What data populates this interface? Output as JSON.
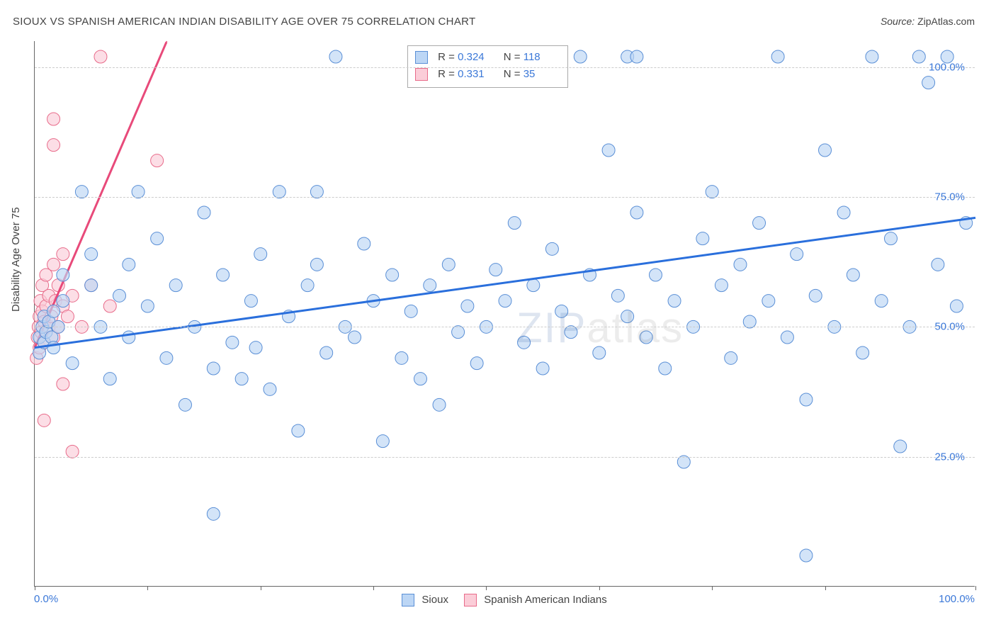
{
  "title": "SIOUX VS SPANISH AMERICAN INDIAN DISABILITY AGE OVER 75 CORRELATION CHART",
  "source_label": "Source:",
  "source_value": "ZipAtlas.com",
  "y_axis_title": "Disability Age Over 75",
  "watermark_z": "ZIP",
  "watermark_rest": "atlas",
  "chart": {
    "type": "scatter",
    "xlim": [
      0,
      100
    ],
    "ylim": [
      0,
      105
    ],
    "x_tick_positions": [
      0,
      12,
      24,
      36,
      48,
      60,
      72,
      84,
      100
    ],
    "x_tick_labels_shown": {
      "0": "0.0%",
      "100": "100.0%"
    },
    "y_gridlines": [
      25,
      50,
      75,
      100
    ],
    "y_tick_labels": {
      "25": "25.0%",
      "50": "50.0%",
      "75": "75.0%",
      "100": "100.0%"
    },
    "background_color": "#ffffff",
    "grid_color": "#cccccc",
    "axis_color": "#666666",
    "tick_label_color": "#3b78d8",
    "series": [
      {
        "name": "Sioux",
        "marker_fill": "#bcd6f5",
        "marker_stroke": "#5a8fd6",
        "marker_radius": 9,
        "trend_color": "#2a6fdc",
        "trend_width": 3,
        "trend_y_at_x0": 46,
        "trend_y_at_x100": 71,
        "R": "0.324",
        "N": "118",
        "points": [
          [
            0.5,
            45
          ],
          [
            0.5,
            48
          ],
          [
            0.8,
            50
          ],
          [
            1,
            52
          ],
          [
            1,
            47
          ],
          [
            1.2,
            49
          ],
          [
            1.5,
            51
          ],
          [
            1.8,
            48
          ],
          [
            2,
            53
          ],
          [
            2,
            46
          ],
          [
            2.5,
            50
          ],
          [
            3,
            55
          ],
          [
            3,
            60
          ],
          [
            4,
            43
          ],
          [
            5,
            76
          ],
          [
            6,
            58
          ],
          [
            6,
            64
          ],
          [
            7,
            50
          ],
          [
            8,
            40
          ],
          [
            9,
            56
          ],
          [
            10,
            62
          ],
          [
            10,
            48
          ],
          [
            11,
            76
          ],
          [
            12,
            54
          ],
          [
            13,
            67
          ],
          [
            14,
            44
          ],
          [
            15,
            58
          ],
          [
            16,
            35
          ],
          [
            17,
            50
          ],
          [
            18,
            72
          ],
          [
            19,
            42
          ],
          [
            20,
            60
          ],
          [
            21,
            47
          ],
          [
            22,
            40
          ],
          [
            23,
            55
          ],
          [
            23.5,
            46
          ],
          [
            24,
            64
          ],
          [
            25,
            38
          ],
          [
            26,
            76
          ],
          [
            27,
            52
          ],
          [
            28,
            30
          ],
          [
            29,
            58
          ],
          [
            30,
            76
          ],
          [
            30,
            62
          ],
          [
            31,
            45
          ],
          [
            32,
            102
          ],
          [
            33,
            50
          ],
          [
            34,
            48
          ],
          [
            35,
            66
          ],
          [
            36,
            55
          ],
          [
            37,
            28
          ],
          [
            38,
            60
          ],
          [
            39,
            44
          ],
          [
            40,
            53
          ],
          [
            41,
            40
          ],
          [
            42,
            58
          ],
          [
            43,
            35
          ],
          [
            44,
            62
          ],
          [
            45,
            49
          ],
          [
            46,
            54
          ],
          [
            47,
            43
          ],
          [
            48,
            50
          ],
          [
            49,
            61
          ],
          [
            50,
            55
          ],
          [
            51,
            70
          ],
          [
            52,
            47
          ],
          [
            53,
            58
          ],
          [
            54,
            42
          ],
          [
            55,
            65
          ],
          [
            56,
            53
          ],
          [
            57,
            49
          ],
          [
            58,
            102
          ],
          [
            59,
            60
          ],
          [
            60,
            45
          ],
          [
            61,
            84
          ],
          [
            62,
            56
          ],
          [
            63,
            52
          ],
          [
            64,
            72
          ],
          [
            65,
            48
          ],
          [
            66,
            60
          ],
          [
            67,
            42
          ],
          [
            68,
            55
          ],
          [
            69,
            24
          ],
          [
            70,
            50
          ],
          [
            71,
            67
          ],
          [
            72,
            76
          ],
          [
            73,
            58
          ],
          [
            74,
            44
          ],
          [
            75,
            62
          ],
          [
            76,
            51
          ],
          [
            77,
            70
          ],
          [
            78,
            55
          ],
          [
            79,
            102
          ],
          [
            80,
            48
          ],
          [
            81,
            64
          ],
          [
            82,
            36
          ],
          [
            83,
            56
          ],
          [
            84,
            84
          ],
          [
            85,
            50
          ],
          [
            86,
            72
          ],
          [
            87,
            60
          ],
          [
            88,
            45
          ],
          [
            89,
            102
          ],
          [
            90,
            55
          ],
          [
            91,
            67
          ],
          [
            92,
            27
          ],
          [
            93,
            50
          ],
          [
            94,
            102
          ],
          [
            95,
            97
          ],
          [
            96,
            62
          ],
          [
            97,
            102
          ],
          [
            98,
            54
          ],
          [
            99,
            70
          ],
          [
            82,
            6
          ],
          [
            63,
            102
          ],
          [
            64,
            102
          ],
          [
            44,
            102
          ],
          [
            19,
            14
          ]
        ]
      },
      {
        "name": "Spanish American Indians",
        "marker_fill": "#fbcdd8",
        "marker_stroke": "#e86b8a",
        "marker_radius": 9,
        "trend_color": "#e84a7a",
        "trend_width": 3,
        "trend_dash_after_x": 14,
        "trend_y_at_x0": 46,
        "trend_slope": 4.2,
        "R": "0.331",
        "N": "35",
        "points": [
          [
            0.2,
            44
          ],
          [
            0.3,
            48
          ],
          [
            0.4,
            50
          ],
          [
            0.5,
            46
          ],
          [
            0.5,
            52
          ],
          [
            0.6,
            55
          ],
          [
            0.7,
            49
          ],
          [
            0.8,
            53
          ],
          [
            0.8,
            58
          ],
          [
            1,
            51
          ],
          [
            1,
            47
          ],
          [
            1.2,
            54
          ],
          [
            1.2,
            60
          ],
          [
            1.5,
            50
          ],
          [
            1.5,
            56
          ],
          [
            1.8,
            52
          ],
          [
            2,
            62
          ],
          [
            2,
            48
          ],
          [
            2.2,
            55
          ],
          [
            2.5,
            58
          ],
          [
            2.5,
            50
          ],
          [
            3,
            54
          ],
          [
            3,
            64
          ],
          [
            3.5,
            52
          ],
          [
            4,
            56
          ],
          [
            4,
            26
          ],
          [
            5,
            50
          ],
          [
            6,
            58
          ],
          [
            7,
            102
          ],
          [
            8,
            54
          ],
          [
            2,
            90
          ],
          [
            2,
            85
          ],
          [
            1,
            32
          ],
          [
            3,
            39
          ],
          [
            13,
            82
          ]
        ]
      }
    ],
    "legend_box": {
      "r_label": "R =",
      "n_label": "N ="
    },
    "bottom_legend": [
      "Sioux",
      "Spanish American Indians"
    ]
  }
}
